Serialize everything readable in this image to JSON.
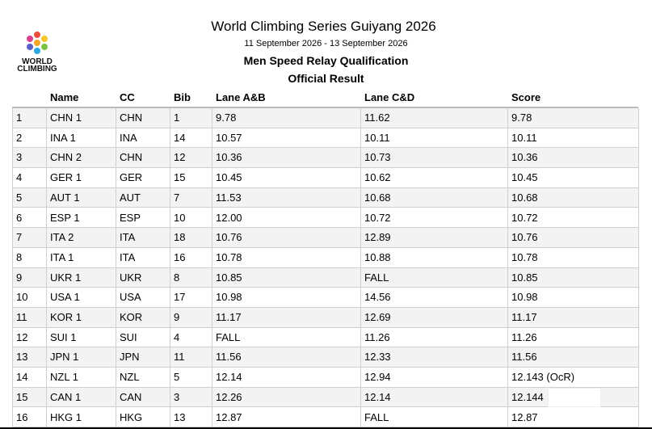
{
  "logo": {
    "lines": [
      "WORLD",
      "CLIMBING"
    ]
  },
  "header": {
    "title": "World Climbing Series Guiyang 2026",
    "dates": "11 September 2026 - 13 September 2026",
    "event": "Men Speed Relay Qualification",
    "status": "Official Result"
  },
  "table": {
    "columns": [
      "",
      "Name",
      "CC",
      "Bib",
      "Lane A&B",
      "Lane C&D",
      "Score"
    ],
    "rows": [
      [
        "1",
        "CHN 1",
        "CHN",
        "1",
        "9.78",
        "11.62",
        "9.78"
      ],
      [
        "2",
        "INA 1",
        "INA",
        "14",
        "10.57",
        "10.11",
        "10.11"
      ],
      [
        "3",
        "CHN 2",
        "CHN",
        "12",
        "10.36",
        "10.73",
        "10.36"
      ],
      [
        "4",
        "GER 1",
        "GER",
        "15",
        "10.45",
        "10.62",
        "10.45"
      ],
      [
        "5",
        "AUT 1",
        "AUT",
        "7",
        "11.53",
        "10.68",
        "10.68"
      ],
      [
        "6",
        "ESP 1",
        "ESP",
        "10",
        "12.00",
        "10.72",
        "10.72"
      ],
      [
        "7",
        "ITA 2",
        "ITA",
        "18",
        "10.76",
        "12.89",
        "10.76"
      ],
      [
        "8",
        "ITA 1",
        "ITA",
        "16",
        "10.78",
        "10.88",
        "10.78"
      ],
      [
        "9",
        "UKR 1",
        "UKR",
        "8",
        "10.85",
        "FALL",
        "10.85"
      ],
      [
        "10",
        "USA 1",
        "USA",
        "17",
        "10.98",
        "14.56",
        "10.98"
      ],
      [
        "11",
        "KOR 1",
        "KOR",
        "9",
        "11.17",
        "12.69",
        "11.17"
      ],
      [
        "12",
        "SUI 1",
        "SUI",
        "4",
        "FALL",
        "11.26",
        "11.26"
      ],
      [
        "13",
        "JPN 1",
        "JPN",
        "11",
        "11.56",
        "12.33",
        "11.56"
      ],
      [
        "14",
        "NZL 1",
        "NZL",
        "5",
        "12.14",
        "12.94",
        "12.143 (OcR)"
      ],
      [
        "15",
        "CAN 1",
        "CAN",
        "3",
        "12.26",
        "12.14",
        "12.144"
      ],
      [
        "16",
        "HKG 1",
        "HKG",
        "13",
        "12.87",
        "FALL",
        "12.87"
      ]
    ]
  }
}
